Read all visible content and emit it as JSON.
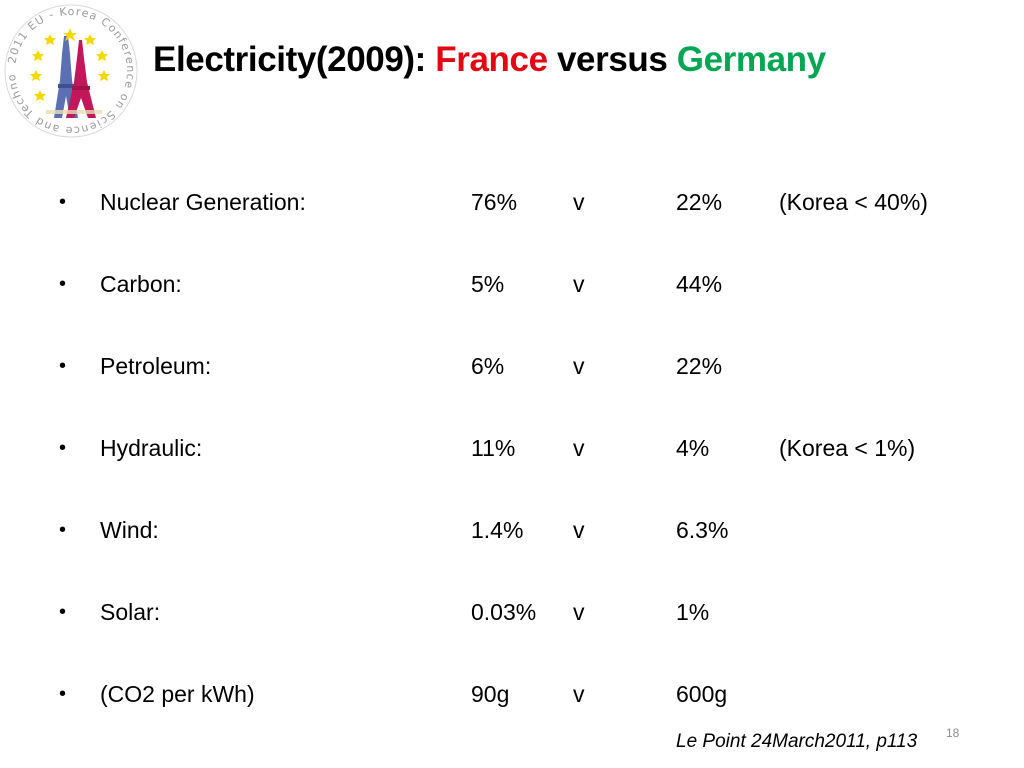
{
  "slide": {
    "title_prefix": "Electricity(2009):",
    "country_a": "France",
    "title_between": "versus",
    "country_b": "Germany",
    "colors": {
      "country_a": "#e30613",
      "country_b": "#00a651",
      "text": "#000000"
    },
    "logo": {
      "ring_text": "2011 EU - Korea Conference on Science and Technology",
      "icon": "eiffel-tower-with-eu-stars-icon"
    },
    "bullet_glyph": "•",
    "rows": [
      {
        "label": "Nuclear Generation:",
        "a": "76%",
        "v": "v",
        "b": "22%",
        "note": "(Korea < 40%)"
      },
      {
        "label": "Carbon:",
        "a": "5%",
        "v": "v",
        "b": "44%",
        "note": ""
      },
      {
        "label": "Petroleum:",
        "a": "6%",
        "v": "v",
        "b": "22%",
        "note": ""
      },
      {
        "label": "Hydraulic:",
        "a": "11%",
        "v": "v",
        "b": "4%",
        "note": "(Korea < 1%)"
      },
      {
        "label": "Wind:",
        "a": "1.4%",
        "v": "v",
        "b": "6.3%",
        "note": ""
      },
      {
        "label": "Solar:",
        "a": "0.03%",
        "v": "v",
        "b": "1%",
        "note": ""
      },
      {
        "label": "(CO2 per kWh)",
        "a": "90g",
        "v": "v",
        "b": "600g",
        "note": ""
      }
    ],
    "source": "Le Point 24March2011, p113",
    "page_number": "18"
  }
}
